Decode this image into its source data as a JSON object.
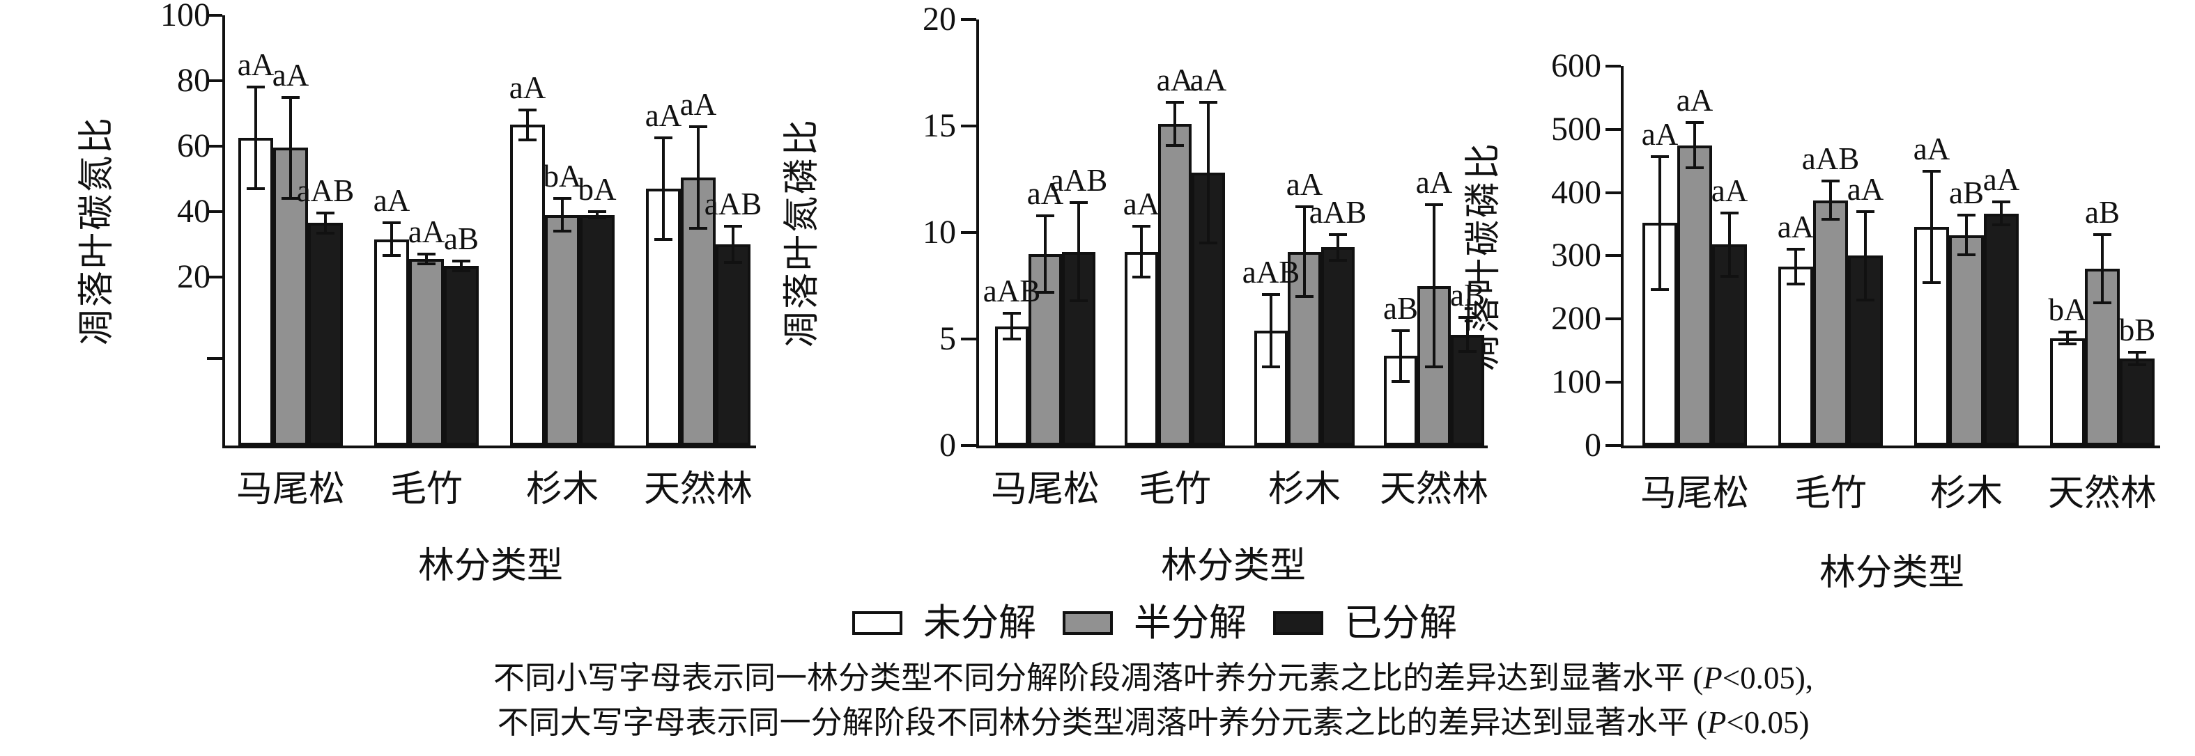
{
  "figure_type": "three-panel grouped bar figure",
  "legend": {
    "items": [
      {
        "label": "未分解",
        "color": "#ffffff"
      },
      {
        "label": "半分解",
        "color": "#919191"
      },
      {
        "label": "已分解",
        "color": "#1b1b1b"
      }
    ]
  },
  "caption": {
    "line1": "不同小写字母表示同一林分类型不同分解阶段凋落叶养分元素之比的差异达到显著水平 (P<0.05),",
    "line2": "不同大写字母表示同一分解阶段不同林分类型凋落叶养分元素之比的差异达到显著水平 (P<0.05)"
  },
  "chart_data": [
    {
      "type": "bar",
      "title": "",
      "ylabel": "凋落叶碳氮比",
      "xlabel": "林分类型",
      "categories": [
        "马尾松",
        "毛竹",
        "杉木",
        "天然林"
      ],
      "yticks": [
        100,
        80,
        60,
        40,
        20
      ],
      "ylim": [
        0,
        100
      ],
      "grid": false,
      "series": [
        {
          "name": "未分解",
          "values": [
            62.5,
            31.5,
            66.5,
            47
          ],
          "errors": [
            15.5,
            5,
            4.5,
            15.5
          ]
        },
        {
          "name": "半分解",
          "values": [
            59.5,
            25.5,
            39,
            50.5
          ],
          "errors": [
            15.5,
            1.5,
            5,
            15.5
          ]
        },
        {
          "name": "已分解",
          "values": [
            36.5,
            23.5,
            39,
            30
          ],
          "errors": [
            3,
            1.5,
            1,
            5.5
          ]
        }
      ],
      "letters": [
        [
          "aA",
          "aA",
          "aAB"
        ],
        [
          "aA",
          "aA",
          "aB"
        ],
        [
          "aA",
          "bA",
          "bA"
        ],
        [
          "aA",
          "aA",
          "aAB"
        ]
      ]
    },
    {
      "type": "bar",
      "title": "",
      "ylabel": "凋落叶氮磷比",
      "xlabel": "林分类型",
      "categories": [
        "马尾松",
        "毛竹",
        "杉木",
        "天然林"
      ],
      "yticks": [
        20,
        15,
        10,
        5,
        0
      ],
      "ylim": [
        0,
        20
      ],
      "grid": false,
      "series": [
        {
          "name": "未分解",
          "values": [
            5.6,
            9.1,
            5.4,
            4.2
          ],
          "errors": [
            0.6,
            1.2,
            1.7,
            1.2
          ]
        },
        {
          "name": "半分解",
          "values": [
            9.0,
            15.1,
            9.1,
            7.5
          ],
          "errors": [
            1.8,
            1.0,
            2.1,
            3.8
          ]
        },
        {
          "name": "已分解",
          "values": [
            9.1,
            12.8,
            9.3,
            5.2
          ],
          "errors": [
            2.3,
            3.3,
            0.6,
            0.8
          ]
        }
      ],
      "letters": [
        [
          "aAB",
          "aA",
          "aAB"
        ],
        [
          "aA",
          "aA",
          "aA"
        ],
        [
          "aAB",
          "aA",
          "aAB"
        ],
        [
          "aB",
          "aA",
          "aB"
        ]
      ]
    },
    {
      "type": "bar",
      "title": "",
      "ylabel": "凋落叶碳磷比",
      "xlabel": "林分类型",
      "categories": [
        "马尾松",
        "毛竹",
        "杉木",
        "天然林"
      ],
      "yticks": [
        600,
        500,
        400,
        300,
        200,
        100,
        0
      ],
      "ylim": [
        0,
        600
      ],
      "grid": false,
      "series": [
        {
          "name": "未分解",
          "values": [
            352,
            283,
            346,
            170
          ],
          "errors": [
            105,
            28,
            88,
            9
          ]
        },
        {
          "name": "半分解",
          "values": [
            475,
            388,
            333,
            280
          ],
          "errors": [
            36,
            30,
            31,
            54
          ]
        },
        {
          "name": "已分解",
          "values": [
            318,
            300,
            367,
            138
          ],
          "errors": [
            50,
            70,
            18,
            10
          ]
        }
      ],
      "letters": [
        [
          "aA",
          "aA",
          "aA"
        ],
        [
          "aA",
          "aAB",
          "aA"
        ],
        [
          "aA",
          "aB",
          "aA"
        ],
        [
          "bA",
          "aB",
          "bB"
        ]
      ]
    }
  ]
}
